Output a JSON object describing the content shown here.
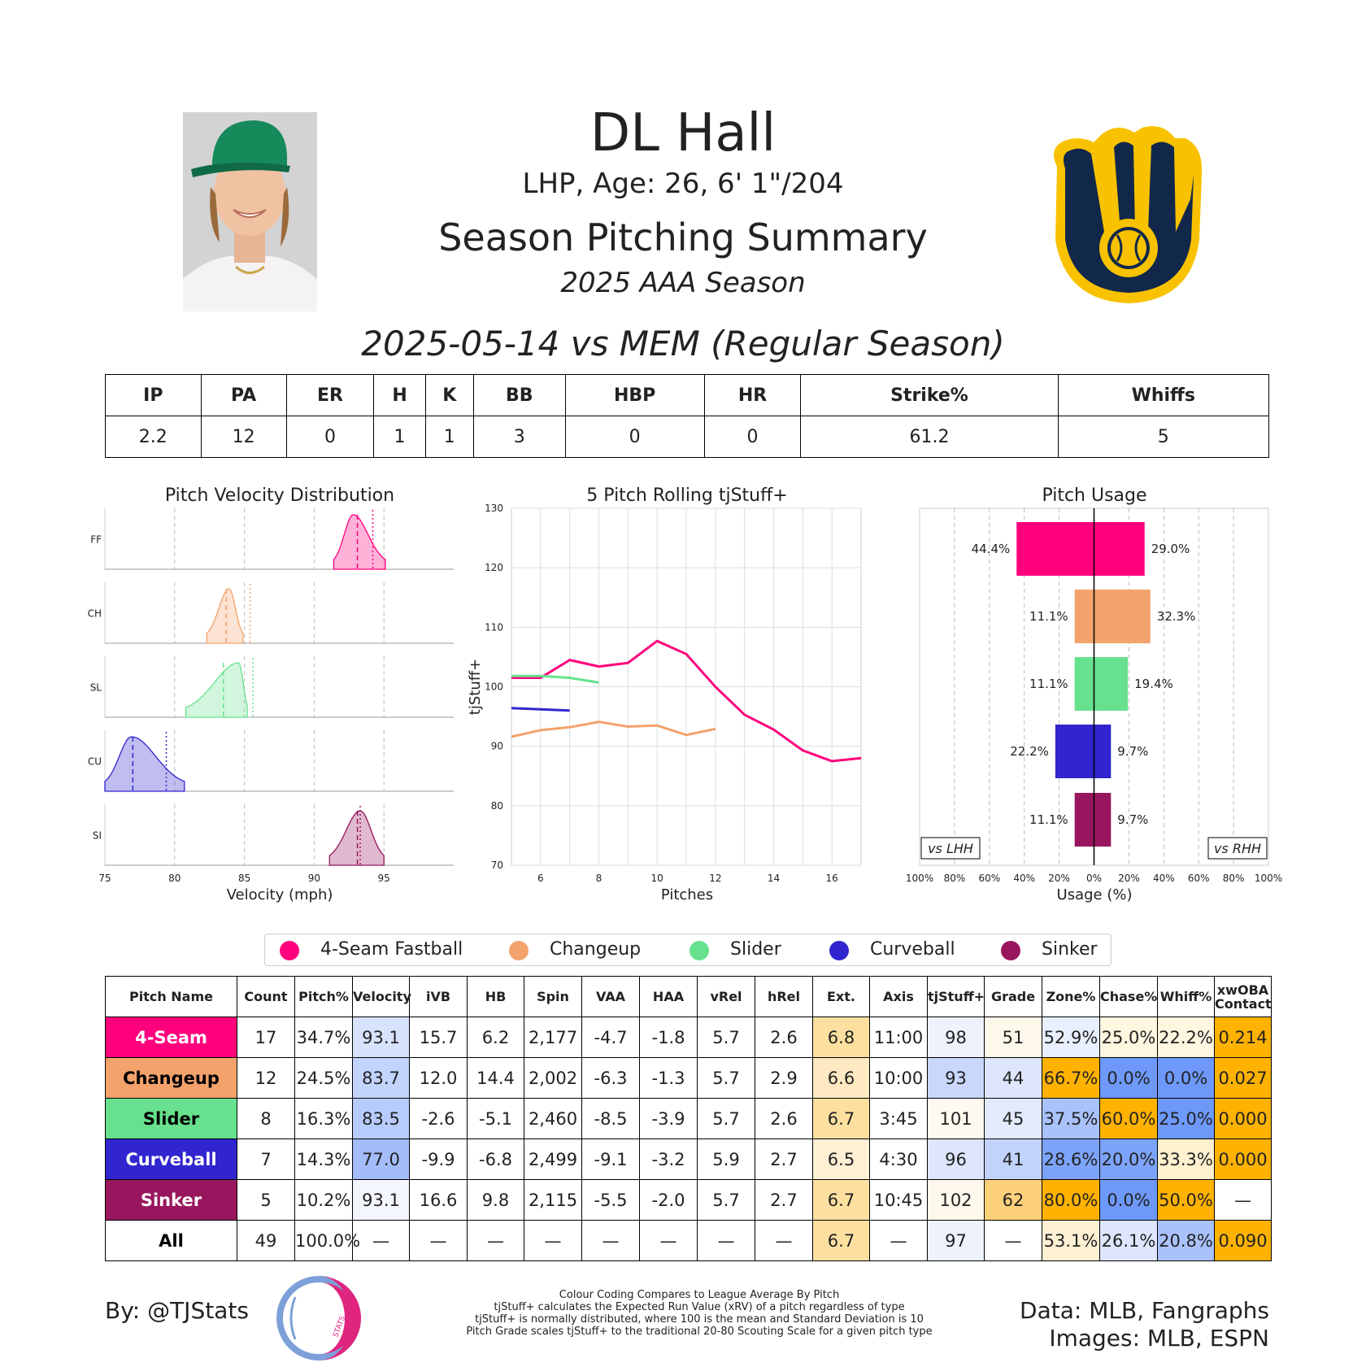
{
  "header": {
    "name": "DL Hall",
    "bio": "LHP, Age: 26, 6' 1\"/204",
    "title": "Season Pitching Summary",
    "season": "2025 AAA Season",
    "game": "2025-05-14 vs MEM (Regular Season)"
  },
  "box_score": {
    "headers": [
      "IP",
      "PA",
      "ER",
      "H",
      "K",
      "BB",
      "HBP",
      "HR",
      "Strike%",
      "Whiffs"
    ],
    "values": [
      "2.2",
      "12",
      "0",
      "1",
      "1",
      "3",
      "0",
      "0",
      "61.2",
      "5"
    ]
  },
  "colors": {
    "FF": "#ff007d",
    "CH": "#f4a26c",
    "SL": "#67e18d",
    "CU": "#3025ce",
    "SI": "#98165d"
  },
  "legend": [
    {
      "label": "4-Seam Fastball",
      "key": "FF"
    },
    {
      "label": "Changeup",
      "key": "CH"
    },
    {
      "label": "Slider",
      "key": "SL"
    },
    {
      "label": "Curveball",
      "key": "CU"
    },
    {
      "label": "Sinker",
      "key": "SI"
    }
  ],
  "chart_data": [
    {
      "type": "area",
      "title": "Pitch Velocity Distribution",
      "xlabel": "Velocity (mph)",
      "xlim": [
        75,
        100
      ],
      "xticks": [
        "75",
        "80",
        "85",
        "90",
        "95"
      ],
      "rows": [
        {
          "label": "FF",
          "range": [
            91.4,
            95.1
          ],
          "peak": 92.8,
          "mean": 93.1,
          "league": 94.2
        },
        {
          "label": "CH",
          "range": [
            82.3,
            84.9
          ],
          "peak": 83.9,
          "mean": 83.7,
          "league": 85.4
        },
        {
          "label": "SL",
          "range": [
            80.8,
            85.2
          ],
          "peak": 84.6,
          "mean": 83.5,
          "league": 85.6
        },
        {
          "label": "CU",
          "range": [
            75.0,
            80.7
          ],
          "peak": 76.9,
          "mean": 77.0,
          "league": 79.4
        },
        {
          "label": "SI",
          "range": [
            91.1,
            95.0
          ],
          "peak": 93.3,
          "mean": 93.1,
          "league": 93.3
        }
      ]
    },
    {
      "type": "line",
      "title": "5 Pitch Rolling tjStuff+",
      "xlabel": "Pitches",
      "ylabel": "tjStuff+",
      "xlim": [
        5,
        17
      ],
      "ylim": [
        70,
        130
      ],
      "xticks": [
        "6",
        "8",
        "10",
        "12",
        "14",
        "16"
      ],
      "yticks": [
        "70",
        "80",
        "90",
        "100",
        "110",
        "120",
        "130"
      ],
      "series": [
        {
          "key": "FF",
          "x": [
            5,
            6,
            7,
            8,
            9,
            10,
            11,
            12,
            13,
            14,
            15,
            16,
            17
          ],
          "y": [
            101.5,
            101.5,
            104.5,
            103.4,
            104.0,
            107.7,
            105.5,
            100.0,
            95.3,
            92.8,
            89.3,
            87.5,
            88.0
          ]
        },
        {
          "key": "CH",
          "x": [
            5,
            6,
            7,
            8,
            9,
            10,
            11,
            12
          ],
          "y": [
            91.6,
            92.7,
            93.2,
            94.1,
            93.3,
            93.5,
            91.9,
            92.9
          ]
        },
        {
          "key": "SL",
          "x": [
            5,
            6,
            7,
            8
          ],
          "y": [
            101.8,
            101.8,
            101.5,
            100.7
          ]
        },
        {
          "key": "CU",
          "x": [
            5,
            6,
            7
          ],
          "y": [
            96.4,
            96.2,
            96.0
          ]
        }
      ]
    },
    {
      "type": "bar",
      "title": "Pitch Usage",
      "xlabel": "Usage (%)",
      "xticks": [
        "100%",
        "80%",
        "60%",
        "40%",
        "20%",
        "0%",
        "20%",
        "40%",
        "60%",
        "80%",
        "100%"
      ],
      "left_label": "vs LHH",
      "right_label": "vs RHH",
      "bars": [
        {
          "key": "FF",
          "lhh": 44.4,
          "rhh": 29.0,
          "lhh_label": "44.4%",
          "rhh_label": "29.0%"
        },
        {
          "key": "CH",
          "lhh": 11.1,
          "rhh": 32.3,
          "lhh_label": "11.1%",
          "rhh_label": "32.3%"
        },
        {
          "key": "SL",
          "lhh": 11.1,
          "rhh": 19.4,
          "lhh_label": "11.1%",
          "rhh_label": "19.4%"
        },
        {
          "key": "CU",
          "lhh": 22.2,
          "rhh": 9.7,
          "lhh_label": "22.2%",
          "rhh_label": "9.7%"
        },
        {
          "key": "SI",
          "lhh": 11.1,
          "rhh": 9.7,
          "lhh_label": "11.1%",
          "rhh_label": "9.7%"
        }
      ]
    },
    {
      "type": "table",
      "title": "",
      "columns": [
        "Pitch Name",
        "Count",
        "Pitch%",
        "Velocity",
        "iVB",
        "HB",
        "Spin",
        "VAA",
        "HAA",
        "vRel",
        "hRel",
        "Ext.",
        "Axis",
        "tjStuff+",
        "Grade",
        "Zone%",
        "Chase%",
        "Whiff%",
        "xwOBA Contact"
      ],
      "rows": [
        {
          "name": "4-Seam",
          "key": "FF",
          "text": "#ffffff",
          "cells": [
            "17",
            "34.7%",
            "93.1",
            "15.7",
            "6.2",
            "2,177",
            "-4.7",
            "-1.8",
            "5.7",
            "2.6",
            "6.8",
            "11:00",
            "98",
            "51",
            "52.9%",
            "25.0%",
            "22.2%",
            "0.214"
          ],
          "bg": [
            "#fff",
            "#fff",
            "#d7e2fc",
            "#fff",
            "#fff",
            "#fff",
            "#fff",
            "#fff",
            "#fff",
            "#fff",
            "#fde0a0",
            "#fff",
            "#edf2fd",
            "#fef8ea",
            "#e8efff",
            "#fff6df",
            "#fff6df",
            "#ffb200"
          ]
        },
        {
          "name": "Changeup",
          "key": "CH",
          "text": "#000000",
          "cells": [
            "12",
            "24.5%",
            "83.7",
            "12.0",
            "14.4",
            "2,002",
            "-6.3",
            "-1.3",
            "5.7",
            "2.9",
            "6.6",
            "10:00",
            "93",
            "44",
            "66.7%",
            "0.0%",
            "0.0%",
            "0.027"
          ],
          "bg": [
            "#fff",
            "#fff",
            "#c2d4fc",
            "#fff",
            "#fff",
            "#fff",
            "#fff",
            "#fff",
            "#fff",
            "#fff",
            "#fee9c2",
            "#fff",
            "#c8d7fb",
            "#dde6fc",
            "#ffb200",
            "#6e99fb",
            "#6e99fb",
            "#ffb200"
          ]
        },
        {
          "name": "Slider",
          "key": "SL",
          "text": "#000000",
          "cells": [
            "8",
            "16.3%",
            "83.5",
            "-2.6",
            "-5.1",
            "2,460",
            "-8.5",
            "-3.9",
            "5.7",
            "2.6",
            "6.7",
            "3:45",
            "101",
            "45",
            "37.5%",
            "60.0%",
            "25.0%",
            "0.000"
          ],
          "bg": [
            "#fff",
            "#fff",
            "#b7ccfc",
            "#fff",
            "#fff",
            "#fff",
            "#fff",
            "#fff",
            "#fff",
            "#fff",
            "#fde0a0",
            "#fff",
            "#fffaf0",
            "#e2eafd",
            "#a9c2fc",
            "#ffb200",
            "#6e99fb",
            "#ffb200"
          ]
        },
        {
          "name": "Curveball",
          "key": "CU",
          "text": "#ffffff",
          "cells": [
            "7",
            "14.3%",
            "77.0",
            "-9.9",
            "-6.8",
            "2,499",
            "-9.1",
            "-3.2",
            "5.9",
            "2.7",
            "6.5",
            "4:30",
            "96",
            "41",
            "28.6%",
            "20.0%",
            "33.3%",
            "0.000"
          ],
          "bg": [
            "#fff",
            "#fff",
            "#a3bdfb",
            "#fff",
            "#fff",
            "#fff",
            "#fff",
            "#fff",
            "#fff",
            "#fff",
            "#fff0d4",
            "#fff",
            "#dde6fc",
            "#c2d3fb",
            "#7da4fb",
            "#7da4fb",
            "#fff0cf",
            "#ffb200"
          ]
        },
        {
          "name": "Sinker",
          "key": "SI",
          "text": "#ffffff",
          "cells": [
            "5",
            "10.2%",
            "93.1",
            "16.6",
            "9.8",
            "2,115",
            "-5.5",
            "-2.0",
            "5.7",
            "2.7",
            "6.7",
            "10:45",
            "102",
            "62",
            "80.0%",
            "0.0%",
            "50.0%",
            "—"
          ],
          "bg": [
            "#fff",
            "#fff",
            "#f4f6fd",
            "#fff",
            "#fff",
            "#fff",
            "#fff",
            "#fff",
            "#fff",
            "#fff",
            "#fde0a0",
            "#fff",
            "#fff8ec",
            "#fdd07a",
            "#ffb200",
            "#6e99fb",
            "#ffb200",
            "#fff"
          ]
        },
        {
          "name": "All",
          "key": "ALL",
          "text": "#000000",
          "cells": [
            "49",
            "100.0%",
            "—",
            "—",
            "—",
            "—",
            "—",
            "—",
            "—",
            "—",
            "6.7",
            "—",
            "97",
            "—",
            "53.1%",
            "26.1%",
            "20.8%",
            "0.090"
          ],
          "bg": [
            "#fff",
            "#fff",
            "#fff",
            "#fff",
            "#fff",
            "#fff",
            "#fff",
            "#fff",
            "#fff",
            "#fff",
            "#fde0a0",
            "#fff",
            "#edf2fd",
            "#fff",
            "#fff0d4",
            "#dde6fc",
            "#a9c2fc",
            "#ffb200"
          ]
        }
      ]
    }
  ],
  "footer": {
    "by": "By: @TJStats",
    "logo_text": "STATS",
    "notes": [
      "Colour Coding Compares to League Average By Pitch",
      "tjStuff+ calculates the Expected Run Value (xRV) of a pitch regardless of type",
      "tjStuff+ is normally distributed, where 100 is the mean and Standard Deviation is 10",
      "Pitch Grade scales tjStuff+ to the traditional 20-80 Scouting Scale for a given pitch type"
    ],
    "credits": [
      "Data: MLB, Fangraphs",
      "Images: MLB, ESPN"
    ]
  }
}
